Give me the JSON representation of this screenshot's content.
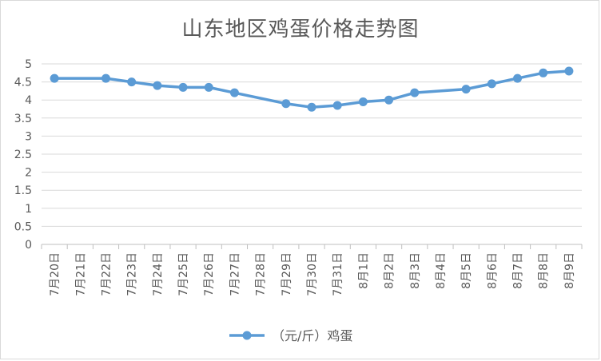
{
  "chart_data": {
    "type": "line",
    "title": "山东地区鸡蛋价格走势图",
    "categories": [
      "7月20日",
      "7月21日",
      "7月22日",
      "7月23日",
      "7月24日",
      "7月25日",
      "7月26日",
      "7月27日",
      "7月28日",
      "7月29日",
      "7月30日",
      "7月31日",
      "8月1日",
      "8月2日",
      "8月3日",
      "8月4日",
      "8月5日",
      "8月6日",
      "8月7日",
      "8月8日",
      "8月9日"
    ],
    "series": [
      {
        "name": "（元/斤）鸡蛋",
        "values": [
          4.6,
          null,
          4.6,
          4.5,
          4.4,
          4.35,
          4.35,
          4.2,
          null,
          3.9,
          3.8,
          3.85,
          3.95,
          4.0,
          4.2,
          null,
          4.3,
          4.45,
          4.6,
          4.75,
          4.8
        ],
        "color": "#5b9bd5"
      }
    ],
    "yticks": [
      "0",
      "0.5",
      "1",
      "1.5",
      "2",
      "2.5",
      "3",
      "3.5",
      "4",
      "4.5",
      "5"
    ],
    "ylim": [
      0,
      5
    ],
    "grid": true,
    "legend_position": "bottom"
  }
}
